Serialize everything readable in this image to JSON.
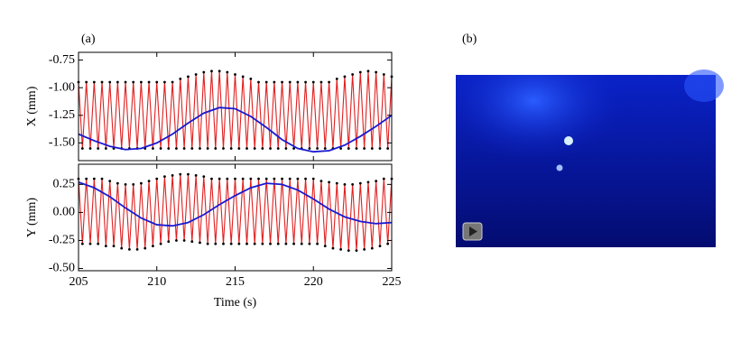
{
  "panel_labels": [
    "(a)",
    "(b)"
  ],
  "chart_data": [
    {
      "type": "line",
      "ylabel": "X (mm)",
      "xlim": [
        205,
        225
      ],
      "xticks": [
        205,
        210,
        215,
        220,
        225
      ],
      "ylim": [
        -1.66,
        -0.68
      ],
      "yticks": [
        {
          "value": -1.5,
          "label": "-1.50"
        },
        {
          "value": -1.25,
          "label": "-1.25"
        },
        {
          "value": -1,
          "label": "-1.00"
        },
        {
          "value": -0.75,
          "label": "-0.75"
        }
      ],
      "series": [
        {
          "color": "#e02020",
          "markers": true,
          "x": [
            205,
            205.25,
            205.5,
            205.75,
            206,
            206.25,
            206.5,
            206.75,
            207,
            207.25,
            207.5,
            207.75,
            208,
            208.25,
            208.5,
            208.75,
            209,
            209.25,
            209.5,
            209.75,
            210,
            210.25,
            210.5,
            210.75,
            211,
            211.25,
            211.5,
            211.75,
            212,
            212.25,
            212.5,
            212.75,
            213,
            213.25,
            213.5,
            213.75,
            214,
            214.25,
            214.5,
            214.75,
            215,
            215.25,
            215.5,
            215.75,
            216,
            216.25,
            216.5,
            216.75,
            217,
            217.25,
            217.5,
            217.75,
            218,
            218.25,
            218.5,
            218.75,
            219,
            219.25,
            219.5,
            219.75,
            220,
            220.25,
            220.5,
            220.75,
            221,
            221.25,
            221.5,
            221.75,
            222,
            222.25,
            222.5,
            222.75,
            223,
            223.25,
            223.5,
            223.75,
            224,
            224.25,
            224.5,
            224.75,
            225
          ],
          "values": [
            -0.95,
            -1.55,
            -0.95,
            -1.55,
            -0.95,
            -1.55,
            -0.95,
            -1.55,
            -0.95,
            -1.55,
            -0.95,
            -1.55,
            -0.95,
            -1.55,
            -0.95,
            -1.55,
            -0.95,
            -1.55,
            -0.95,
            -1.55,
            -0.95,
            -1.55,
            -0.95,
            -1.55,
            -0.95,
            -1.55,
            -0.92,
            -1.55,
            -0.9,
            -1.55,
            -0.88,
            -1.55,
            -0.86,
            -1.55,
            -0.85,
            -1.55,
            -0.85,
            -1.55,
            -0.86,
            -1.55,
            -0.88,
            -1.55,
            -0.9,
            -1.55,
            -0.92,
            -1.55,
            -0.95,
            -1.55,
            -0.95,
            -1.55,
            -0.95,
            -1.55,
            -0.95,
            -1.55,
            -0.95,
            -1.55,
            -0.95,
            -1.55,
            -0.95,
            -1.55,
            -0.95,
            -1.55,
            -0.95,
            -1.55,
            -0.95,
            -1.55,
            -0.92,
            -1.55,
            -0.9,
            -1.55,
            -0.88,
            -1.55,
            -0.86,
            -1.55,
            -0.85,
            -1.55,
            -0.86,
            -1.55,
            -0.88,
            -1.55,
            -0.9
          ]
        },
        {
          "color": "#1a1ad0",
          "markers": false,
          "x": [
            205,
            206,
            207,
            208,
            209,
            210,
            211,
            212,
            213,
            214,
            215,
            216,
            217,
            218,
            219,
            220,
            221,
            222,
            223,
            224,
            225
          ],
          "values": [
            -1.42,
            -1.48,
            -1.53,
            -1.56,
            -1.55,
            -1.5,
            -1.42,
            -1.32,
            -1.23,
            -1.18,
            -1.19,
            -1.26,
            -1.36,
            -1.47,
            -1.55,
            -1.58,
            -1.57,
            -1.52,
            -1.44,
            -1.35,
            -1.25
          ]
        }
      ]
    },
    {
      "type": "line",
      "ylabel": "Y (mm)",
      "xlabel": "Time (s)",
      "xlim": [
        205,
        225
      ],
      "xticks": [
        205,
        210,
        215,
        220,
        225
      ],
      "ylim": [
        -0.52,
        0.43
      ],
      "yticks": [
        {
          "value": -0.5,
          "label": "-0.50"
        },
        {
          "value": -0.25,
          "label": "-0.25"
        },
        {
          "value": 0,
          "label": "0.00"
        },
        {
          "value": 0.25,
          "label": "0.25"
        }
      ],
      "series": [
        {
          "color": "#e02020",
          "markers": true,
          "x": [
            205,
            205.25,
            205.5,
            205.75,
            206,
            206.25,
            206.5,
            206.75,
            207,
            207.25,
            207.5,
            207.75,
            208,
            208.25,
            208.5,
            208.75,
            209,
            209.25,
            209.5,
            209.75,
            210,
            210.25,
            210.5,
            210.75,
            211,
            211.25,
            211.5,
            211.75,
            212,
            212.25,
            212.5,
            212.75,
            213,
            213.25,
            213.5,
            213.75,
            214,
            214.25,
            214.5,
            214.75,
            215,
            215.25,
            215.5,
            215.75,
            216,
            216.25,
            216.5,
            216.75,
            217,
            217.25,
            217.5,
            217.75,
            218,
            218.25,
            218.5,
            218.75,
            219,
            219.25,
            219.5,
            219.75,
            220,
            220.25,
            220.5,
            220.75,
            221,
            221.25,
            221.5,
            221.75,
            222,
            222.25,
            222.5,
            222.75,
            223,
            223.25,
            223.5,
            223.75,
            224,
            224.25,
            224.5,
            224.75,
            225
          ],
          "values": [
            0.3,
            -0.28,
            0.3,
            -0.28,
            0.3,
            -0.28,
            0.3,
            -0.3,
            0.28,
            -0.3,
            0.26,
            -0.32,
            0.25,
            -0.33,
            0.25,
            -0.33,
            0.26,
            -0.32,
            0.28,
            -0.3,
            0.3,
            -0.28,
            0.32,
            -0.26,
            0.33,
            -0.25,
            0.34,
            -0.25,
            0.34,
            -0.26,
            0.33,
            -0.27,
            0.32,
            -0.28,
            0.3,
            -0.28,
            0.3,
            -0.28,
            0.3,
            -0.28,
            0.3,
            -0.28,
            0.3,
            -0.28,
            0.3,
            -0.28,
            0.3,
            -0.28,
            0.3,
            -0.28,
            0.3,
            -0.28,
            0.3,
            -0.28,
            0.3,
            -0.28,
            0.3,
            -0.28,
            0.3,
            -0.28,
            0.3,
            -0.28,
            0.28,
            -0.3,
            0.27,
            -0.32,
            0.26,
            -0.33,
            0.25,
            -0.34,
            0.25,
            -0.34,
            0.26,
            -0.33,
            0.27,
            -0.32,
            0.28,
            -0.3,
            0.3,
            -0.28,
            0.3
          ]
        },
        {
          "color": "#1a1ad0",
          "markers": false,
          "x": [
            205,
            206,
            207,
            208,
            209,
            210,
            211,
            212,
            213,
            214,
            215,
            216,
            217,
            218,
            219,
            220,
            221,
            222,
            223,
            224,
            225
          ],
          "values": [
            0.27,
            0.22,
            0.14,
            0.04,
            -0.05,
            -0.11,
            -0.12,
            -0.09,
            -0.02,
            0.07,
            0.15,
            0.22,
            0.26,
            0.25,
            0.2,
            0.12,
            0.03,
            -0.04,
            -0.08,
            -0.1,
            -0.09
          ]
        }
      ]
    }
  ]
}
